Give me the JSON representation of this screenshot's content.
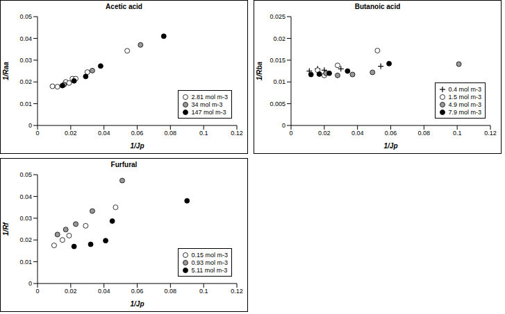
{
  "chart_data": [
    {
      "type": "scatter",
      "title": "Acetic acid",
      "x_label": "1/Jp",
      "y_label": "1/Raa",
      "xlim": [
        0,
        0.12
      ],
      "xticks": [
        0,
        0.02,
        0.04,
        0.06,
        0.08,
        0.1,
        0.12
      ],
      "ylim": [
        0,
        0.05
      ],
      "yticks": [
        0,
        0.01,
        0.02,
        0.03,
        0.04,
        0.05
      ],
      "legend": "lower right",
      "series": [
        {
          "name": "2.81 mol m-3",
          "color": "#ffffff",
          "marker": "circle",
          "x": [
            0.009,
            0.012,
            0.017,
            0.019,
            0.021,
            0.023,
            0.03,
            0.054
          ],
          "values": [
            0.018,
            0.0178,
            0.02,
            0.0195,
            0.0215,
            0.0215,
            0.0245,
            0.0343
          ]
        },
        {
          "name": "34 mol m-3",
          "color": "#999999",
          "marker": "circle",
          "x": [
            0.016,
            0.033,
            0.062
          ],
          "values": [
            0.0188,
            0.0252,
            0.037
          ]
        },
        {
          "name": "147 mol m-3",
          "color": "#000000",
          "marker": "circle",
          "x": [
            0.015,
            0.022,
            0.029,
            0.038,
            0.076
          ],
          "values": [
            0.0183,
            0.0205,
            0.0225,
            0.0273,
            0.041
          ]
        }
      ]
    },
    {
      "type": "scatter",
      "title": "Butanoic acid",
      "x_label": "1/Jp",
      "y_label": "1/Rba",
      "xlim": [
        0,
        0.12
      ],
      "xticks": [
        0,
        0.02,
        0.04,
        0.06,
        0.08,
        0.1,
        0.12
      ],
      "ylim": [
        0,
        0.025
      ],
      "yticks": [
        0,
        0.005,
        0.01,
        0.015,
        0.02,
        0.025
      ],
      "legend": "lower right",
      "series": [
        {
          "name": "0.4 mol m-3",
          "color": "#000000",
          "marker": "plus",
          "x": [
            0.011,
            0.016,
            0.02,
            0.03,
            0.054
          ],
          "values": [
            0.0125,
            0.013,
            0.0127,
            0.013,
            0.0136
          ]
        },
        {
          "name": "1.5 mol m-3",
          "color": "#ffffff",
          "marker": "circle",
          "x": [
            0.016,
            0.02,
            0.028,
            0.052
          ],
          "values": [
            0.0127,
            0.0115,
            0.0138,
            0.0172
          ]
        },
        {
          "name": "4.9 mol m-3",
          "color": "#999999",
          "marker": "circle",
          "x": [
            0.021,
            0.028,
            0.037,
            0.049,
            0.101
          ],
          "values": [
            0.012,
            0.0115,
            0.0117,
            0.0122,
            0.0141
          ]
        },
        {
          "name": "7.9 mol m-3",
          "color": "#000000",
          "marker": "circle",
          "x": [
            0.012,
            0.017,
            0.023,
            0.034,
            0.059
          ],
          "values": [
            0.0117,
            0.0118,
            0.012,
            0.0125,
            0.0142
          ]
        }
      ]
    },
    {
      "type": "scatter",
      "title": "Furfural",
      "x_label": "1/Jp",
      "y_label": "1/Rf",
      "xlim": [
        0,
        0.12
      ],
      "xticks": [
        0,
        0.02,
        0.04,
        0.06,
        0.08,
        0.1,
        0.12
      ],
      "ylim": [
        0,
        0.05
      ],
      "yticks": [
        0,
        0.01,
        0.02,
        0.03,
        0.04,
        0.05
      ],
      "legend": "lower right",
      "series": [
        {
          "name": "0.15 mol m-3",
          "color": "#ffffff",
          "marker": "circle",
          "x": [
            0.01,
            0.015,
            0.019,
            0.029,
            0.047
          ],
          "values": [
            0.0175,
            0.02,
            0.022,
            0.0265,
            0.035
          ]
        },
        {
          "name": "0.93 mol m-3",
          "color": "#999999",
          "marker": "circle",
          "x": [
            0.012,
            0.017,
            0.023,
            0.033,
            0.051
          ],
          "values": [
            0.0225,
            0.0248,
            0.0273,
            0.0333,
            0.0473
          ]
        },
        {
          "name": "5.11 mol m-3",
          "color": "#000000",
          "marker": "circle",
          "x": [
            0.022,
            0.032,
            0.041,
            0.045,
            0.09
          ],
          "values": [
            0.017,
            0.018,
            0.0197,
            0.0287,
            0.038
          ]
        }
      ]
    }
  ]
}
